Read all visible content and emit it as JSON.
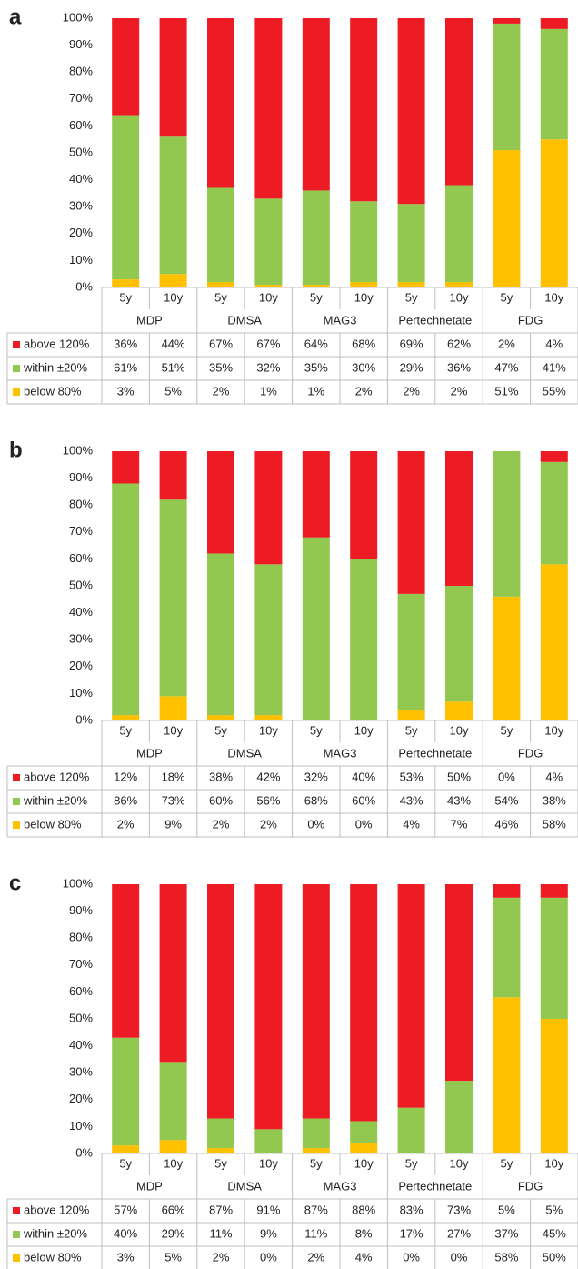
{
  "chart_data": [
    {
      "type": "bar",
      "stacked": true,
      "panel": "a",
      "categories": [
        "5y",
        "10y",
        "5y",
        "10y",
        "5y",
        "10y",
        "5y",
        "10y",
        "5y",
        "10y"
      ],
      "groups": [
        "MDP",
        "DMSA",
        "MAG3",
        "Pertechnetate",
        "FDG"
      ],
      "ylim": [
        0,
        100
      ],
      "yticks": [
        {
          "value": 0,
          "label": "0%"
        },
        {
          "value": 10,
          "label": "10%"
        },
        {
          "value": 20,
          "label": "20%"
        },
        {
          "value": 30,
          "label": "30%"
        },
        {
          "value": 40,
          "label": "40%"
        },
        {
          "value": 50,
          "label": "50%"
        },
        {
          "value": 60,
          "label": "60%"
        },
        {
          "value": 70,
          "label": "70%"
        },
        {
          "value": 80,
          "label": "80%"
        },
        {
          "value": 90,
          "label": "90%"
        },
        {
          "value": 100,
          "label": "100%"
        }
      ],
      "series": [
        {
          "name": "above 120%",
          "color": "#ed1c24",
          "values": [
            36,
            44,
            67,
            67,
            64,
            68,
            69,
            62,
            2,
            4
          ],
          "value_labels": [
            "36%",
            "44%",
            "67%",
            "67%",
            "64%",
            "68%",
            "69%",
            "62%",
            "2%",
            "4%"
          ]
        },
        {
          "name": "within ±20%",
          "color": "#92c850",
          "values": [
            61,
            51,
            35,
            32,
            35,
            30,
            29,
            36,
            47,
            41
          ],
          "value_labels": [
            "61%",
            "51%",
            "35%",
            "32%",
            "35%",
            "30%",
            "29%",
            "36%",
            "47%",
            "41%"
          ]
        },
        {
          "name": "below 80%",
          "color": "#ffc000",
          "values": [
            3,
            5,
            2,
            1,
            1,
            2,
            2,
            2,
            51,
            55
          ],
          "value_labels": [
            "3%",
            "5%",
            "2%",
            "1%",
            "1%",
            "2%",
            "2%",
            "2%",
            "51%",
            "55%"
          ]
        }
      ]
    },
    {
      "type": "bar",
      "stacked": true,
      "panel": "b",
      "categories": [
        "5y",
        "10y",
        "5y",
        "10y",
        "5y",
        "10y",
        "5y",
        "10y",
        "5y",
        "10y"
      ],
      "groups": [
        "MDP",
        "DMSA",
        "MAG3",
        "Pertechnetate",
        "FDG"
      ],
      "ylim": [
        0,
        100
      ],
      "yticks": [
        {
          "value": 0,
          "label": "0%"
        },
        {
          "value": 10,
          "label": "10%"
        },
        {
          "value": 20,
          "label": "20%"
        },
        {
          "value": 30,
          "label": "30%"
        },
        {
          "value": 40,
          "label": "40%"
        },
        {
          "value": 50,
          "label": "50%"
        },
        {
          "value": 60,
          "label": "60%"
        },
        {
          "value": 70,
          "label": "70%"
        },
        {
          "value": 80,
          "label": "80%"
        },
        {
          "value": 90,
          "label": "90%"
        },
        {
          "value": 100,
          "label": "100%"
        }
      ],
      "series": [
        {
          "name": "above 120%",
          "color": "#ed1c24",
          "values": [
            12,
            18,
            38,
            42,
            32,
            40,
            53,
            50,
            0,
            4
          ],
          "value_labels": [
            "12%",
            "18%",
            "38%",
            "42%",
            "32%",
            "40%",
            "53%",
            "50%",
            "0%",
            "4%"
          ]
        },
        {
          "name": "within ±20%",
          "color": "#92c850",
          "values": [
            86,
            73,
            60,
            56,
            68,
            60,
            43,
            43,
            54,
            38
          ],
          "value_labels": [
            "86%",
            "73%",
            "60%",
            "56%",
            "68%",
            "60%",
            "43%",
            "43%",
            "54%",
            "38%"
          ]
        },
        {
          "name": "below 80%",
          "color": "#ffc000",
          "values": [
            2,
            9,
            2,
            2,
            0,
            0,
            4,
            7,
            46,
            58
          ],
          "value_labels": [
            "2%",
            "9%",
            "2%",
            "2%",
            "0%",
            "0%",
            "4%",
            "7%",
            "46%",
            "58%"
          ]
        }
      ]
    },
    {
      "type": "bar",
      "stacked": true,
      "panel": "c",
      "categories": [
        "5y",
        "10y",
        "5y",
        "10y",
        "5y",
        "10y",
        "5y",
        "10y",
        "5y",
        "10y"
      ],
      "groups": [
        "MDP",
        "DMSA",
        "MAG3",
        "Pertechnetate",
        "FDG"
      ],
      "ylim": [
        0,
        100
      ],
      "yticks": [
        {
          "value": 0,
          "label": "0%"
        },
        {
          "value": 10,
          "label": "10%"
        },
        {
          "value": 20,
          "label": "20%"
        },
        {
          "value": 30,
          "label": "30%"
        },
        {
          "value": 40,
          "label": "40%"
        },
        {
          "value": 50,
          "label": "50%"
        },
        {
          "value": 60,
          "label": "60%"
        },
        {
          "value": 70,
          "label": "70%"
        },
        {
          "value": 80,
          "label": "80%"
        },
        {
          "value": 90,
          "label": "90%"
        },
        {
          "value": 100,
          "label": "100%"
        }
      ],
      "series": [
        {
          "name": "above 120%",
          "color": "#ed1c24",
          "values": [
            57,
            66,
            87,
            91,
            87,
            88,
            83,
            73,
            5,
            5
          ],
          "value_labels": [
            "57%",
            "66%",
            "87%",
            "91%",
            "87%",
            "88%",
            "83%",
            "73%",
            "5%",
            "5%"
          ]
        },
        {
          "name": "within ±20%",
          "color": "#92c850",
          "values": [
            40,
            29,
            11,
            9,
            11,
            8,
            17,
            27,
            37,
            45
          ],
          "value_labels": [
            "40%",
            "29%",
            "11%",
            "9%",
            "11%",
            "8%",
            "17%",
            "27%",
            "37%",
            "45%"
          ]
        },
        {
          "name": "below 80%",
          "color": "#ffc000",
          "values": [
            3,
            5,
            2,
            0,
            2,
            4,
            0,
            0,
            58,
            50
          ],
          "value_labels": [
            "3%",
            "5%",
            "2%",
            "0%",
            "2%",
            "4%",
            "0%",
            "0%",
            "58%",
            "50%"
          ]
        }
      ]
    }
  ]
}
